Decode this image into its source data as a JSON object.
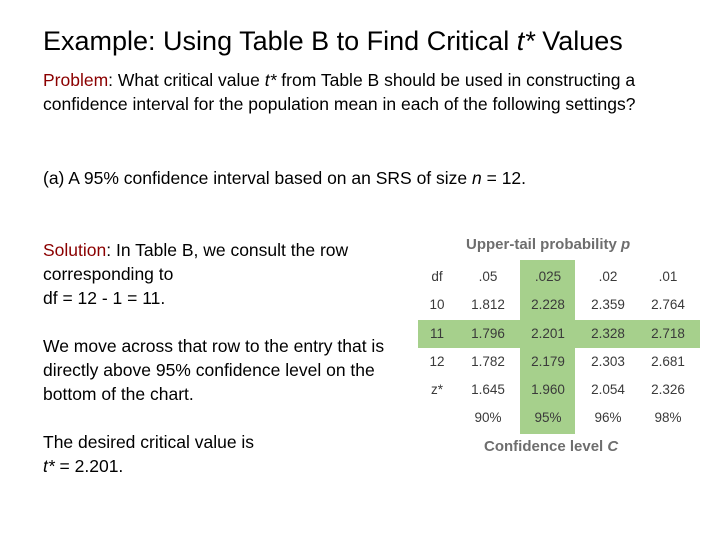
{
  "title": {
    "prefix": "Example: Using Table B to Find Critical ",
    "var": "t*",
    "suffix": " Values"
  },
  "problem": {
    "label": "Problem",
    "pre": ": What critical value ",
    "var": "t*",
    "post": " from Table B should be used in constructing a confidence interval for the population mean in each of the following settings?"
  },
  "part_a": {
    "pre": "(a) A 95% confidence interval based on an SRS of size ",
    "var": "n",
    "post": " = 12."
  },
  "solution": {
    "label": "Solution",
    "line1": ": In Table B, we consult the row corresponding to",
    "line2": "df = 12 - 1 = 11.",
    "para2": "We move across that row to the entry that is directly above 95% confidence level on the bottom of the chart.",
    "para3": "The desired critical value is",
    "answer_var": "t*",
    "answer_post": " = 2.201."
  },
  "table": {
    "top_caption": "Upper-tail probability",
    "top_var": "p",
    "bottom_caption": "Confidence level",
    "bottom_var": "C",
    "header": {
      "label": "df",
      "cols": [
        ".05",
        ".025",
        ".02",
        ".01"
      ]
    },
    "rows": [
      {
        "label": "10",
        "values": [
          "1.812",
          "2.228",
          "2.359",
          "2.764"
        ]
      },
      {
        "label": "11",
        "values": [
          "1.796",
          "2.201",
          "2.328",
          "2.718"
        ]
      },
      {
        "label": "12",
        "values": [
          "1.782",
          "2.179",
          "2.303",
          "2.681"
        ]
      },
      {
        "label": "z*",
        "values": [
          "1.645",
          "1.960",
          "2.054",
          "2.326"
        ]
      }
    ],
    "confidence": [
      "90%",
      "95%",
      "96%",
      "98%"
    ],
    "highlight_color": "#a6d08c"
  }
}
